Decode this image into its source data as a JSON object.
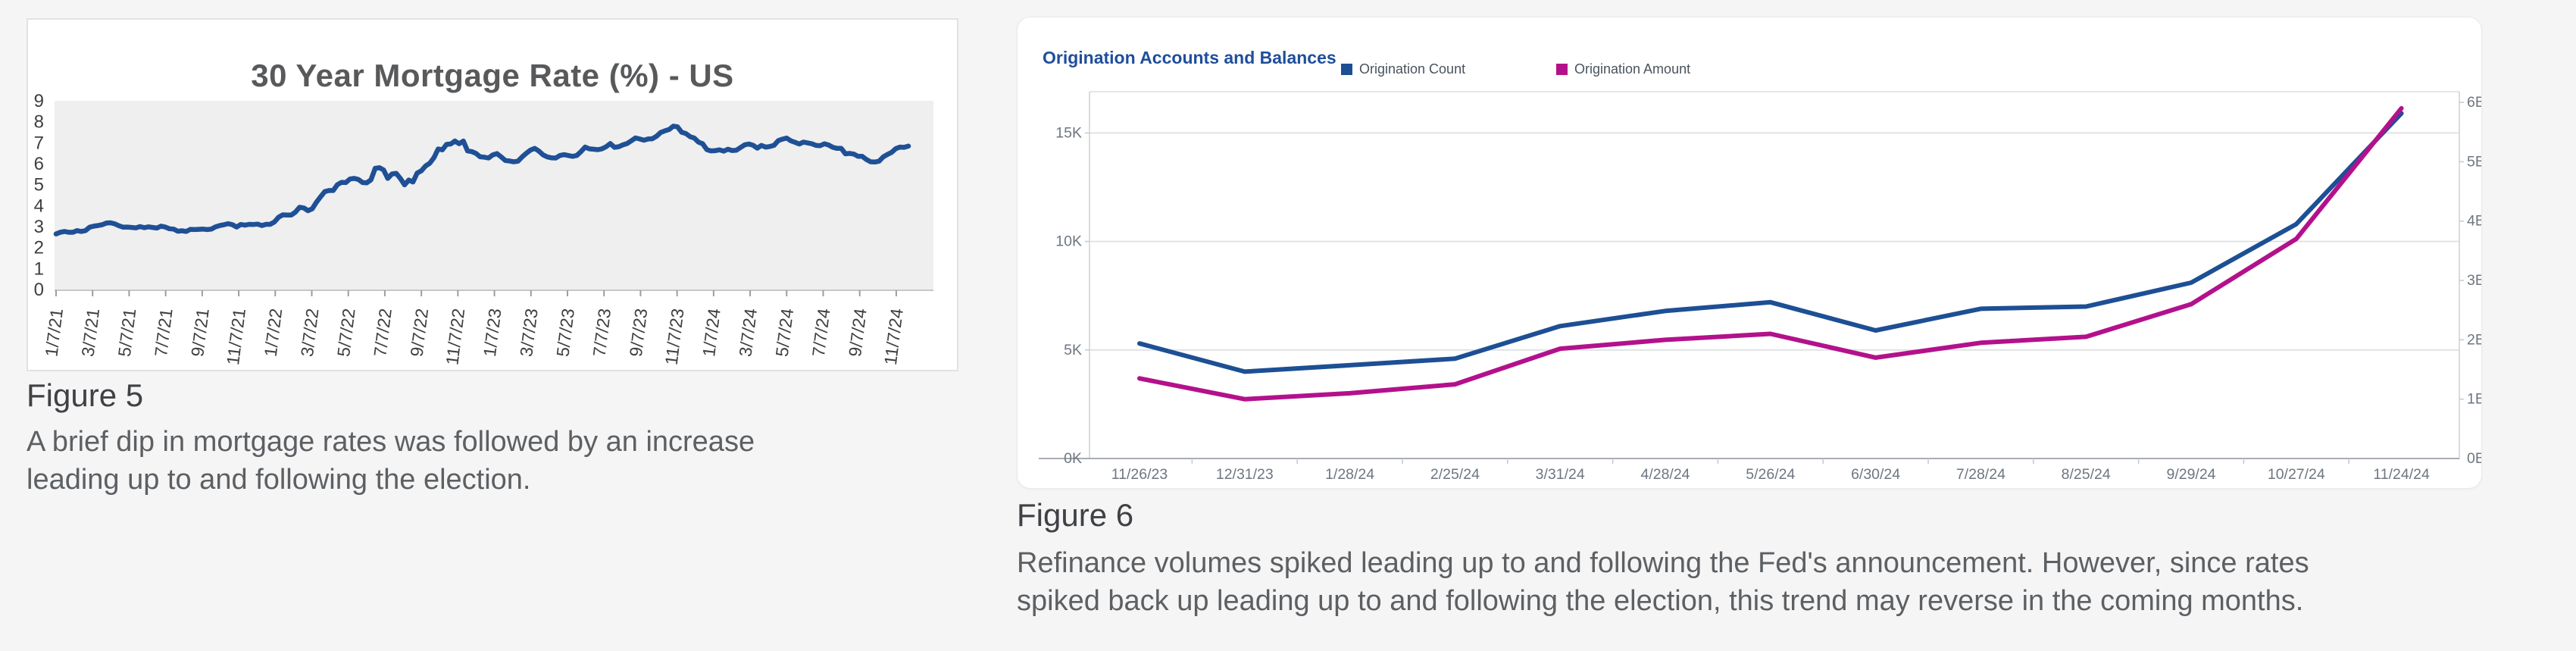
{
  "figure5": {
    "heading": "Figure 5",
    "caption_lines": [
      "A brief dip in mortgage rates was followed by an increase",
      "leading up to and following the election."
    ]
  },
  "figure6": {
    "heading": "Figure 6",
    "caption_lines": [
      "Refinance volumes spiked leading up to and following the Fed's announcement. However, since rates",
      "spiked back up leading up to and following the election, this trend may reverse in the coming months."
    ]
  },
  "chart_data": [
    {
      "type": "line",
      "title": "30 Year Mortgage Rate (%) - US",
      "title_color": "#58595b",
      "plot_bg": "#efefef",
      "axis_text_color": "#3f3f3f",
      "ylim": [
        0,
        9
      ],
      "y_ticks": [
        0,
        1,
        2,
        3,
        4,
        5,
        6,
        7,
        8,
        9
      ],
      "x_tick_labels": [
        "1/7/21",
        "3/7/21",
        "5/7/21",
        "7/7/21",
        "9/7/21",
        "11/7/21",
        "1/7/22",
        "3/7/22",
        "5/7/22",
        "7/7/22",
        "9/7/22",
        "11/7/22",
        "1/7/23",
        "3/7/23",
        "5/7/23",
        "7/7/23",
        "9/7/23",
        "11/7/23",
        "1/7/24",
        "3/7/24",
        "5/7/24",
        "7/7/24",
        "9/7/24",
        "11/7/24"
      ],
      "x_tick_interval_weeks": 8.7,
      "grid": false,
      "series": [
        {
          "name": "30 Year Mortgage Rate (%)",
          "color": "#1f5096",
          "cadence": "weekly",
          "values": [
            2.65,
            2.73,
            2.77,
            2.73,
            2.73,
            2.81,
            2.77,
            2.81,
            2.97,
            3.02,
            3.05,
            3.09,
            3.17,
            3.18,
            3.13,
            3.04,
            2.97,
            2.98,
            2.96,
            2.94,
            3.0,
            2.95,
            2.99,
            2.96,
            2.93,
            3.02,
            2.98,
            2.9,
            2.88,
            2.78,
            2.8,
            2.77,
            2.87,
            2.86,
            2.87,
            2.88,
            2.86,
            2.88,
            2.99,
            3.05,
            3.09,
            3.14,
            3.09,
            2.98,
            3.1,
            3.07,
            3.11,
            3.1,
            3.12,
            3.05,
            3.11,
            3.11,
            3.22,
            3.45,
            3.56,
            3.55,
            3.55,
            3.69,
            3.92,
            3.89,
            3.76,
            3.85,
            4.16,
            4.42,
            4.67,
            4.72,
            4.72,
            5.0,
            5.11,
            5.1,
            5.27,
            5.3,
            5.25,
            5.1,
            5.09,
            5.23,
            5.78,
            5.81,
            5.7,
            5.3,
            5.51,
            5.54,
            5.3,
            4.99,
            5.22,
            5.13,
            5.55,
            5.66,
            5.89,
            6.02,
            6.29,
            6.7,
            6.66,
            6.92,
            6.94,
            7.08,
            6.95,
            7.08,
            6.61,
            6.58,
            6.49,
            6.33,
            6.31,
            6.27,
            6.42,
            6.48,
            6.33,
            6.15,
            6.13,
            6.09,
            6.12,
            6.32,
            6.5,
            6.65,
            6.73,
            6.6,
            6.42,
            6.32,
            6.28,
            6.27,
            6.39,
            6.43,
            6.39,
            6.35,
            6.39,
            6.57,
            6.79,
            6.71,
            6.69,
            6.67,
            6.71,
            6.81,
            6.96,
            6.78,
            6.81,
            6.9,
            6.96,
            7.09,
            7.23,
            7.18,
            7.12,
            7.18,
            7.19,
            7.31,
            7.49,
            7.57,
            7.63,
            7.79,
            7.76,
            7.5,
            7.44,
            7.29,
            7.22,
            7.03,
            6.95,
            6.67,
            6.61,
            6.62,
            6.66,
            6.6,
            6.69,
            6.63,
            6.64,
            6.77,
            6.9,
            6.94,
            6.88,
            6.74,
            6.87,
            6.79,
            6.82,
            6.88,
            7.1,
            7.17,
            7.22,
            7.09,
            7.02,
            6.94,
            7.03,
            6.99,
            6.95,
            6.87,
            6.86,
            6.95,
            6.89,
            6.78,
            6.73,
            6.73,
            6.47,
            6.49,
            6.46,
            6.35,
            6.35,
            6.2,
            6.09,
            6.08,
            6.12,
            6.32,
            6.44,
            6.54,
            6.72,
            6.79,
            6.78,
            6.84
          ]
        }
      ]
    },
    {
      "type": "line",
      "title": "Origination Accounts and Balances",
      "title_color": "#1f4e9b",
      "axis_text_color": "#6e7680",
      "grid": true,
      "legend_position": "top",
      "categories": [
        "11/26/23",
        "12/31/23",
        "1/28/24",
        "2/25/24",
        "3/31/24",
        "4/28/24",
        "5/26/24",
        "6/30/24",
        "7/28/24",
        "8/25/24",
        "9/29/24",
        "10/27/24",
        "11/24/24"
      ],
      "left_axis": {
        "tick_labels": [
          "0K",
          "5K",
          "10K",
          "15K"
        ],
        "tick_values": [
          0,
          5,
          10,
          15
        ],
        "unit": "K",
        "plot_max": 16.9
      },
      "right_axis": {
        "tick_labels": [
          "0B",
          "1B",
          "2B",
          "3B",
          "4B",
          "5B",
          "6B"
        ],
        "tick_values": [
          0,
          1,
          2,
          3,
          4,
          5,
          6
        ],
        "unit": "B",
        "plot_max": 6.18
      },
      "series": [
        {
          "name": "Origination Count",
          "axis": "left",
          "color": "#1d4f94",
          "unit": "K",
          "values": [
            5.3,
            4.0,
            4.3,
            4.6,
            6.1,
            6.8,
            7.2,
            5.9,
            6.9,
            7.0,
            8.1,
            10.8,
            15.9
          ]
        },
        {
          "name": "Origination Amount",
          "axis": "right",
          "color": "#b3118c",
          "unit": "B",
          "values": [
            1.35,
            1.0,
            1.1,
            1.25,
            1.85,
            2.0,
            2.1,
            1.7,
            1.95,
            2.05,
            2.6,
            3.7,
            5.9
          ]
        }
      ]
    }
  ]
}
